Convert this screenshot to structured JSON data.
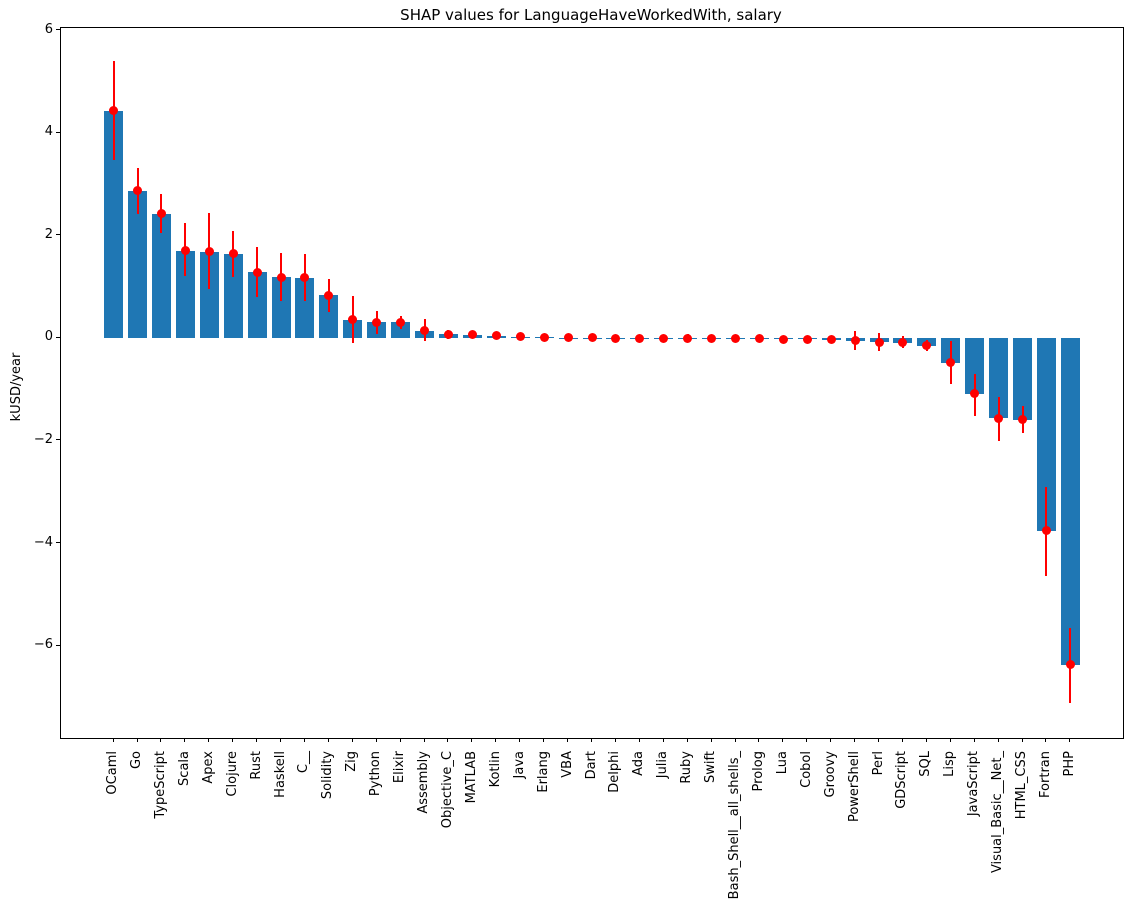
{
  "title": "SHAP values for LanguageHaveWorkedWith, salary",
  "ylabel": "kUSD/year",
  "chart_data": {
    "type": "bar",
    "title": "SHAP values for LanguageHaveWorkedWith, salary",
    "xlabel": "",
    "ylabel": "kUSD/year",
    "ylim": [
      -7.8,
      6.04
    ],
    "yticks": [
      6,
      4,
      2,
      0,
      -2,
      -4,
      -6
    ],
    "ytick_labels": [
      "6",
      "4",
      "2",
      "0",
      "−2",
      "−4",
      "−6"
    ],
    "grid": false,
    "legend": "none",
    "bar_color": "#1f77b4",
    "point_color": "#ff0000",
    "categories": [
      "OCaml",
      "Go",
      "TypeScript",
      "Scala",
      "Apex",
      "Clojure",
      "Rust",
      "Haskell",
      "C__",
      "Solidity",
      "Zig",
      "Python",
      "Elixir",
      "Assembly",
      "Objective_C",
      "MATLAB",
      "Kotlin",
      "Java",
      "Erlang",
      "VBA",
      "Dart",
      "Delphi",
      "Ada",
      "Julia",
      "Ruby",
      "Swift",
      "Bash_Shell__all_shells_",
      "Prolog",
      "Lua",
      "Cobol",
      "Groovy",
      "PowerShell",
      "Perl",
      "GDScript",
      "SQL",
      "Lisp",
      "JavaScript",
      "Visual_Basic__Net_",
      "HTML_CSS",
      "Fortran",
      "PHP"
    ],
    "series": [
      {
        "name": "SHAP value (bar, kUSD/year)",
        "values": [
          4.43,
          2.87,
          2.42,
          1.7,
          1.68,
          1.64,
          1.28,
          1.18,
          1.17,
          0.83,
          0.35,
          0.3,
          0.3,
          0.14,
          0.07,
          0.06,
          0.04,
          0.02,
          0.01,
          0.0,
          0.0,
          -0.01,
          -0.01,
          -0.01,
          -0.01,
          -0.01,
          -0.01,
          -0.02,
          -0.03,
          -0.03,
          -0.04,
          -0.06,
          -0.09,
          -0.1,
          -0.15,
          -0.49,
          -1.09,
          -1.57,
          -1.6,
          -3.76,
          -6.37
        ]
      },
      {
        "name": "mean SHAP (red point, kUSD/year)",
        "values": [
          4.43,
          2.87,
          2.42,
          1.7,
          1.68,
          1.64,
          1.28,
          1.18,
          1.17,
          0.83,
          0.35,
          0.3,
          0.3,
          0.14,
          0.07,
          0.06,
          0.04,
          0.02,
          0.01,
          0.0,
          0.0,
          -0.01,
          -0.01,
          -0.01,
          -0.01,
          -0.01,
          -0.01,
          -0.02,
          -0.03,
          -0.03,
          -0.04,
          -0.06,
          -0.09,
          -0.1,
          -0.15,
          -0.49,
          -1.09,
          -1.57,
          -1.6,
          -3.76,
          -6.37
        ]
      }
    ],
    "error_low": [
      3.47,
      2.42,
      2.04,
      1.21,
      0.95,
      1.18,
      0.79,
      0.71,
      0.71,
      0.51,
      -0.11,
      0.08,
      0.18,
      -0.06,
      -0.02,
      0.01,
      -0.03,
      -0.01,
      -0.01,
      -0.02,
      -0.02,
      -0.03,
      -0.03,
      -0.04,
      -0.09,
      -0.03,
      -0.04,
      -0.05,
      -0.06,
      -0.06,
      -0.07,
      -0.23,
      -0.25,
      -0.19,
      -0.25,
      -0.9,
      -1.52,
      -2.01,
      -1.85,
      -4.64,
      -7.11
    ],
    "error_high": [
      5.4,
      3.32,
      2.8,
      2.23,
      2.43,
      2.09,
      1.77,
      1.66,
      1.64,
      1.14,
      0.81,
      0.53,
      0.43,
      0.37,
      0.15,
      0.12,
      0.11,
      0.04,
      0.03,
      0.02,
      0.02,
      0.01,
      0.01,
      0.02,
      0.07,
      0.01,
      0.01,
      0.01,
      0.0,
      0.0,
      -0.01,
      0.14,
      0.09,
      0.04,
      -0.04,
      -0.06,
      -0.7,
      -1.16,
      -1.33,
      -2.9,
      -5.65
    ]
  }
}
